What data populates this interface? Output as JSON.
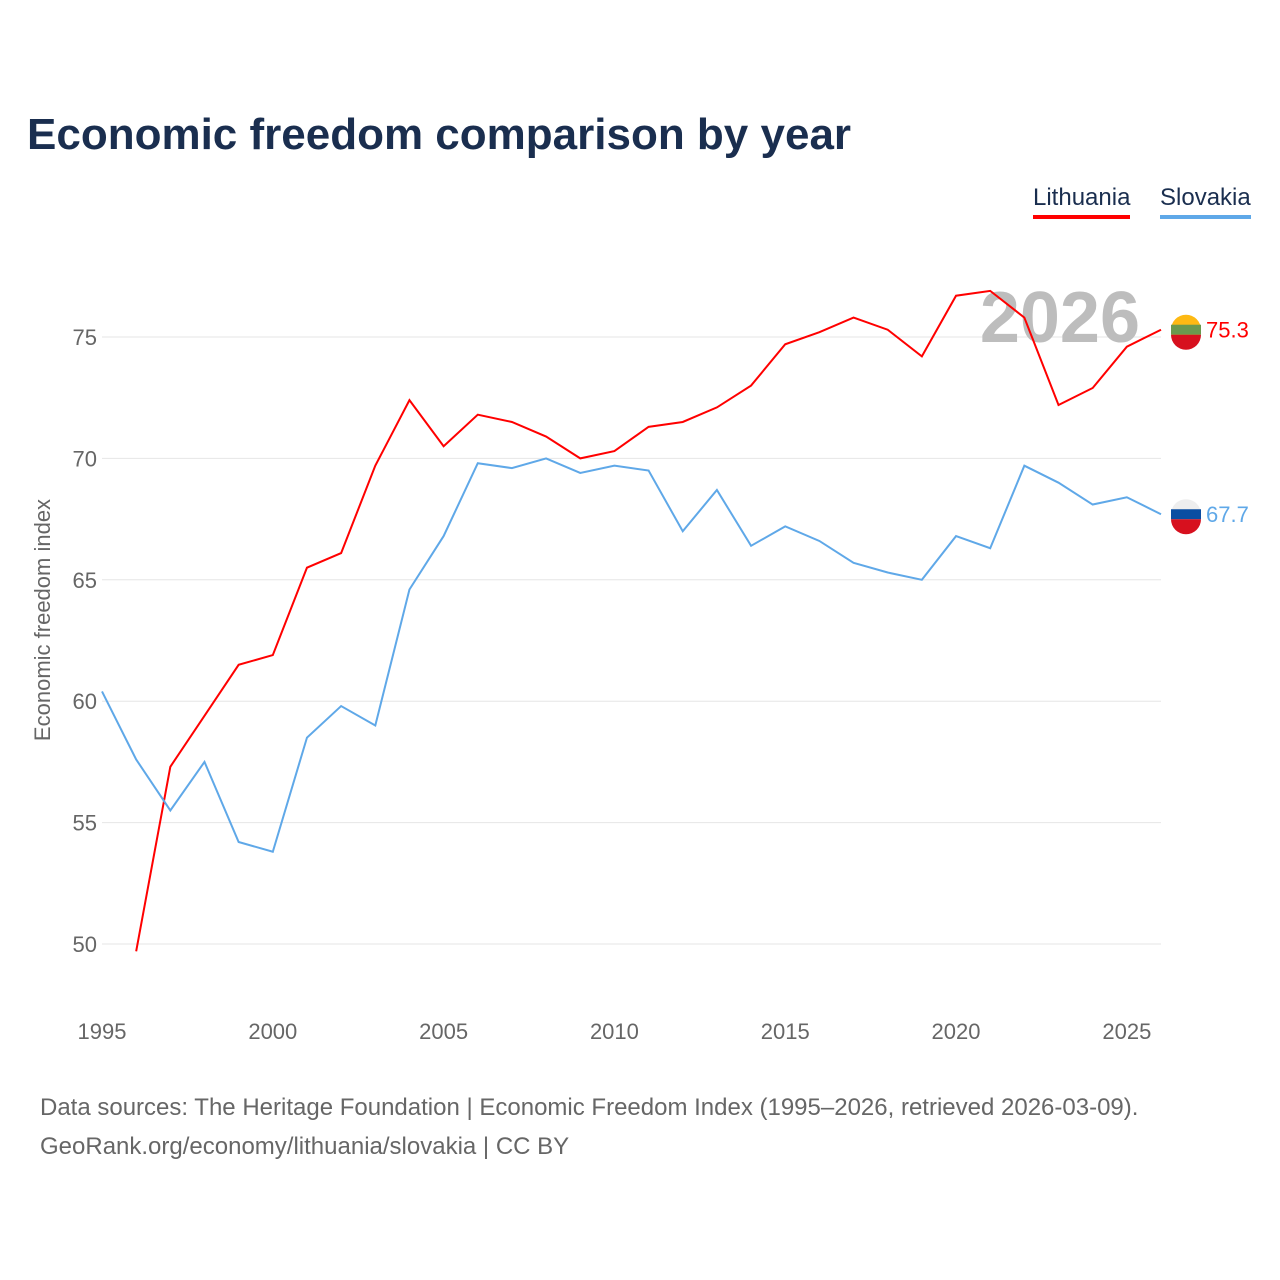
{
  "chart_data": {
    "type": "line",
    "title": "Economic freedom comparison by year",
    "xlabel": "",
    "ylabel": "Economic freedom index",
    "xlim": [
      1995,
      2026
    ],
    "ylim": [
      47,
      78
    ],
    "xticks": [
      1995,
      2000,
      2005,
      2010,
      2015,
      2020,
      2025
    ],
    "yticks": [
      50,
      55,
      60,
      65,
      70,
      75
    ],
    "grid": true,
    "legend_position": "top-right",
    "year_watermark": "2026",
    "series": [
      {
        "name": "Lithuania",
        "color": "#ff0000",
        "end_label": "75.3",
        "x": [
          1996,
          1997,
          1998,
          1999,
          2000,
          2001,
          2002,
          2003,
          2004,
          2005,
          2006,
          2007,
          2008,
          2009,
          2010,
          2011,
          2012,
          2013,
          2014,
          2015,
          2016,
          2017,
          2018,
          2019,
          2020,
          2021,
          2022,
          2023,
          2024,
          2025,
          2026
        ],
        "values": [
          49.7,
          57.3,
          59.4,
          61.5,
          61.9,
          65.5,
          66.1,
          69.7,
          72.4,
          70.5,
          71.8,
          71.5,
          70.9,
          70.0,
          70.3,
          71.3,
          71.5,
          72.1,
          73.0,
          74.7,
          75.2,
          75.8,
          75.3,
          74.2,
          76.7,
          76.9,
          75.8,
          72.2,
          72.9,
          74.6,
          75.3
        ]
      },
      {
        "name": "Slovakia",
        "color": "#5fa8e8",
        "end_label": "67.7",
        "x": [
          1995,
          1996,
          1997,
          1998,
          1999,
          2000,
          2001,
          2002,
          2003,
          2004,
          2005,
          2006,
          2007,
          2008,
          2009,
          2010,
          2011,
          2012,
          2013,
          2014,
          2015,
          2016,
          2017,
          2018,
          2019,
          2020,
          2021,
          2022,
          2023,
          2024,
          2025,
          2026
        ],
        "values": [
          60.4,
          57.6,
          55.5,
          57.5,
          54.2,
          53.8,
          58.5,
          59.8,
          59.0,
          64.6,
          66.8,
          69.8,
          69.6,
          70.0,
          69.4,
          69.7,
          69.5,
          67.0,
          68.7,
          66.4,
          67.2,
          66.6,
          65.7,
          65.3,
          65.0,
          66.8,
          66.3,
          69.7,
          69.0,
          68.1,
          68.4,
          67.7
        ]
      }
    ]
  },
  "source_line1": "Data sources: The Heritage Foundation | Economic Freedom Index (1995–2026, retrieved 2026-03-09).",
  "source_line2": "GeoRank.org/economy/lithuania/slovakia | CC BY"
}
